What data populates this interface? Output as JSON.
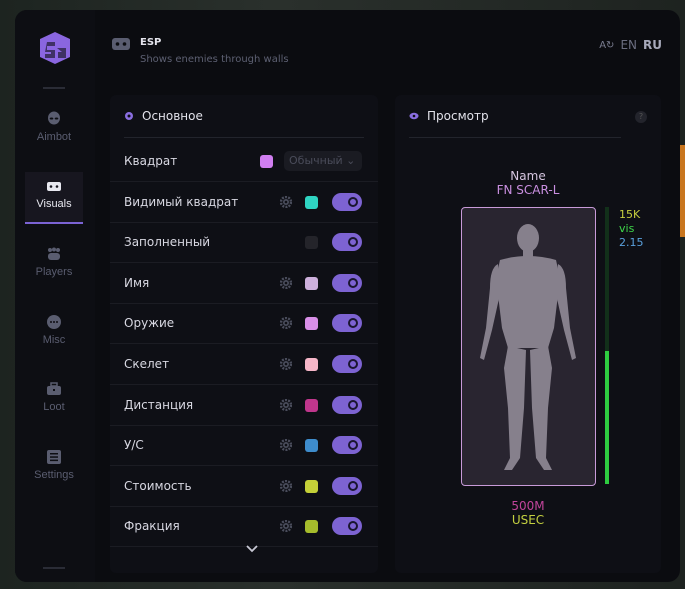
{
  "header": {
    "title": "ESP",
    "subtitle": "Shows enemies through walls",
    "lang_options": [
      "EN",
      "RU"
    ],
    "active_lang": "RU"
  },
  "sidebar": {
    "items": [
      {
        "label": "Aimbot",
        "icon": "alien-icon"
      },
      {
        "label": "Visuals",
        "icon": "vr-goggles-icon",
        "active": true
      },
      {
        "label": "Players",
        "icon": "users-icon"
      },
      {
        "label": "Misc",
        "icon": "dots-icon"
      },
      {
        "label": "Loot",
        "icon": "briefcase-icon"
      },
      {
        "label": "Settings",
        "icon": "list-icon"
      }
    ]
  },
  "main_panel": {
    "title": "Основное",
    "rows": [
      {
        "label": "Квадрат",
        "color": "#d07ef0",
        "select": "Обычный"
      },
      {
        "label": "Видимый квадрат",
        "color": "#2fd4c2",
        "enabled": true
      },
      {
        "label": "Заполненный",
        "color": "#24242a",
        "enabled": true
      },
      {
        "label": "Имя",
        "color": "#cdb0dc",
        "enabled": true
      },
      {
        "label": "Оружие",
        "color": "#d98fe8",
        "enabled": true
      },
      {
        "label": "Скелет",
        "color": "#f6b6c8",
        "enabled": true
      },
      {
        "label": "Дистанция",
        "color": "#c0368c",
        "enabled": true
      },
      {
        "label": "У/С",
        "color": "#3e8ccc",
        "enabled": true
      },
      {
        "label": "Стоимость",
        "color": "#c4d038",
        "enabled": true
      },
      {
        "label": "Фракция",
        "color": "#a6bc2c",
        "enabled": true
      }
    ]
  },
  "preview": {
    "title": "Просмотр",
    "help": "?",
    "name": "Name",
    "weapon": "FN SCAR-L",
    "value": "15K",
    "visible": "vis",
    "kd": "2.15",
    "distance": "500M",
    "faction": "USEC",
    "health_fraction": 0.48,
    "colors": {
      "name": "#d6c6e0",
      "weapon": "#c98fe0",
      "value": "#c8d040",
      "visible": "#3fd84a",
      "kd": "#5aa0dc",
      "distance": "#c0449a",
      "faction": "#c4d040",
      "box": "#c89ad8"
    }
  },
  "accent": "#7d63d2"
}
